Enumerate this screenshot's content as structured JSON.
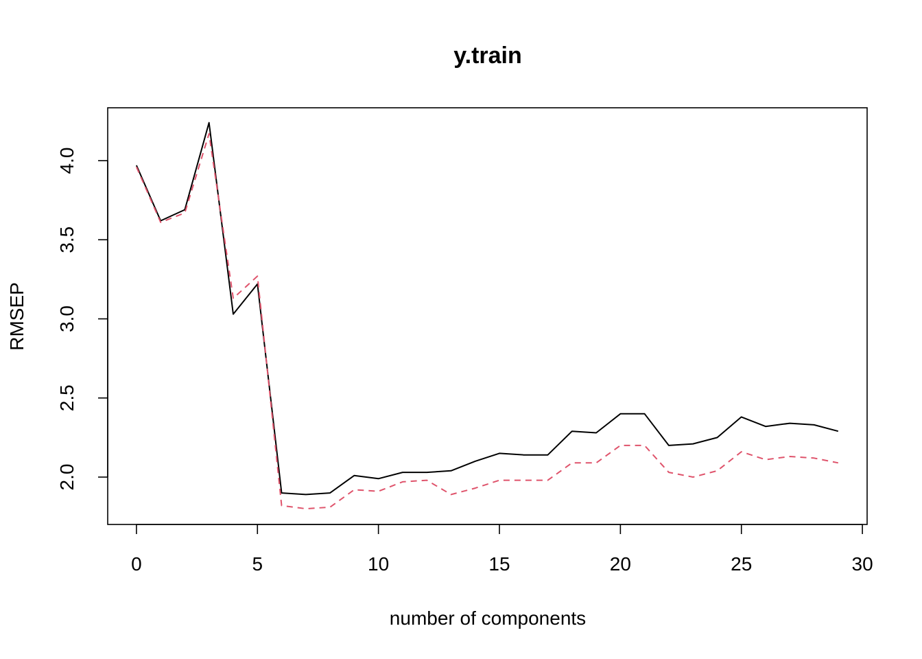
{
  "chart_data": {
    "type": "line",
    "title": "y.train",
    "xlabel": "number of components",
    "ylabel": "RMSEP",
    "xlim": [
      0,
      30
    ],
    "ylim": [
      1.7,
      4.34
    ],
    "xticks": [
      0,
      5,
      10,
      15,
      20,
      25,
      30
    ],
    "yticks": [
      2.0,
      2.5,
      3.0,
      3.5,
      4.0
    ],
    "ytick_labels": [
      "2.0",
      "2.5",
      "3.0",
      "3.5",
      "4.0"
    ],
    "grid": false,
    "legend": "none",
    "x": [
      0,
      1,
      2,
      3,
      4,
      5,
      6,
      7,
      8,
      9,
      10,
      11,
      12,
      13,
      14,
      15,
      16,
      17,
      18,
      19,
      20,
      21,
      22,
      23,
      24,
      25,
      26,
      27,
      28,
      29
    ],
    "series": [
      {
        "color": "#000000",
        "dash": "solid",
        "values": [
          3.97,
          3.62,
          3.69,
          4.24,
          3.03,
          3.22,
          1.9,
          1.89,
          1.9,
          2.01,
          1.99,
          2.03,
          2.03,
          2.04,
          2.1,
          2.15,
          2.14,
          2.14,
          2.29,
          2.28,
          2.4,
          2.4,
          2.2,
          2.21,
          2.25,
          2.38,
          2.32,
          2.34,
          2.33,
          2.29
        ]
      },
      {
        "color": "#DF536B",
        "dash": "dashed",
        "values": [
          3.96,
          3.61,
          3.67,
          4.17,
          3.13,
          3.27,
          1.82,
          1.8,
          1.81,
          1.92,
          1.91,
          1.97,
          1.98,
          1.89,
          1.93,
          1.98,
          1.98,
          1.98,
          2.09,
          2.09,
          2.2,
          2.2,
          2.03,
          2.0,
          2.04,
          2.16,
          2.11,
          2.13,
          2.12,
          2.09
        ]
      }
    ]
  }
}
